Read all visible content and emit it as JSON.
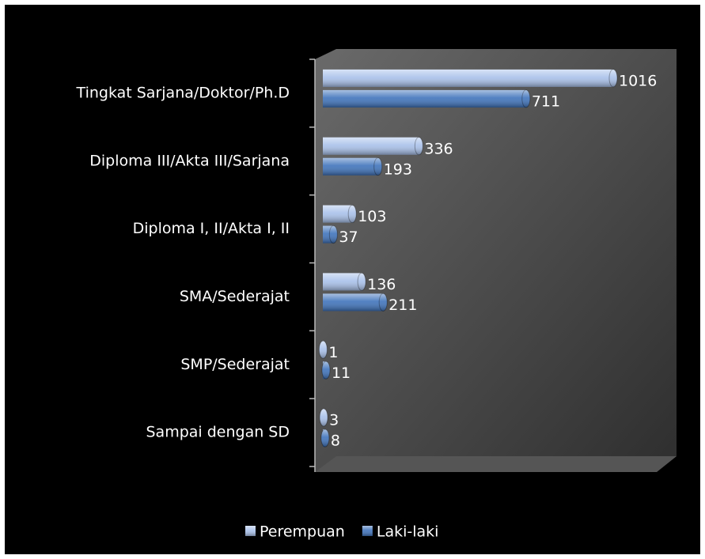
{
  "chart_data": {
    "type": "bar",
    "orientation": "horizontal",
    "categories": [
      "Tingkat Sarjana/Doktor/Ph.D",
      "Diploma III/Akta  III/Sarjana",
      "Diploma I, II/Akta  I, II",
      "SMA/Sederajat",
      "SMP/Sederajat",
      "Sampai dengan SD"
    ],
    "series": [
      {
        "name": "Perempuan",
        "color": "#a9c1ea",
        "values": [
          1016,
          336,
          103,
          136,
          1,
          3
        ]
      },
      {
        "name": "Laki-laki",
        "color": "#3f73bb",
        "values": [
          711,
          193,
          37,
          211,
          11,
          8
        ]
      }
    ],
    "xlim": [
      0,
      1200
    ],
    "legend": "bottom"
  }
}
